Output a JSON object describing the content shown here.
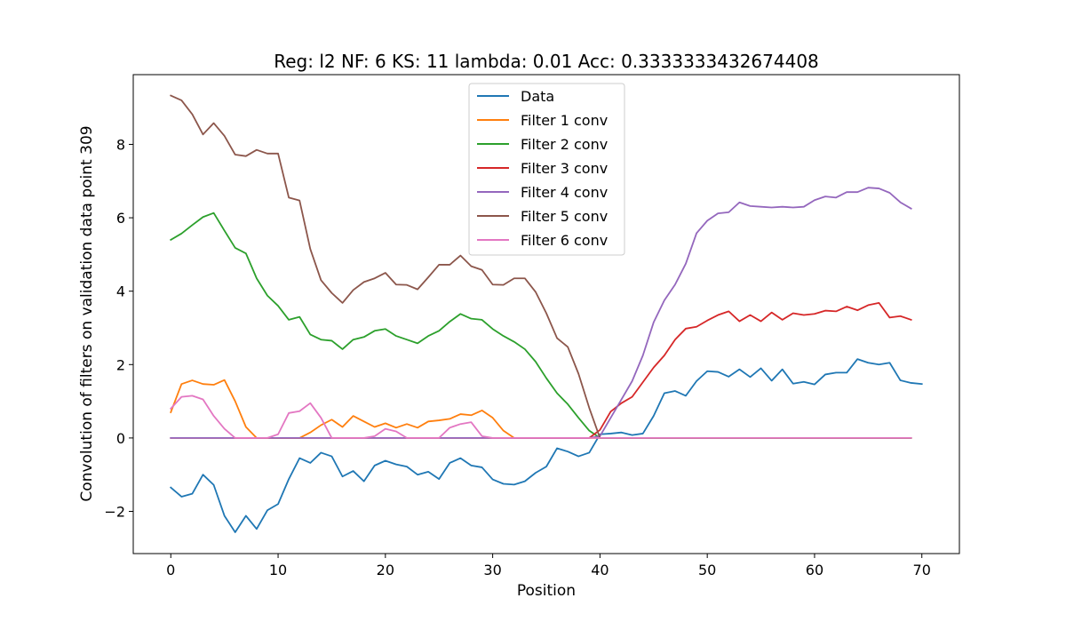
{
  "chart_data": {
    "type": "line",
    "title": "Reg: l2  NF: 6  KS: 11  lambda: 0.01 Acc: 0.3333333432674408",
    "xlabel": "Position",
    "ylabel": "Convolution of filters on validation data point 309",
    "xlim": [
      -3.5,
      73.5
    ],
    "ylim": [
      -3.15,
      9.9
    ],
    "xticks": [
      0,
      10,
      20,
      30,
      40,
      50,
      60,
      70
    ],
    "yticks": [
      -2,
      0,
      2,
      4,
      6,
      8
    ],
    "grid": false,
    "legend_position": "top-center",
    "series": [
      {
        "name": "Data",
        "color": "#1f77b4",
        "x_start": 0,
        "values": [
          -1.35,
          -1.6,
          -1.52,
          -1.0,
          -1.28,
          -2.12,
          -2.57,
          -2.12,
          -2.48,
          -1.97,
          -1.8,
          -1.12,
          -0.55,
          -0.68,
          -0.4,
          -0.5,
          -1.05,
          -0.9,
          -1.18,
          -0.75,
          -0.62,
          -0.72,
          -0.78,
          -1.0,
          -0.92,
          -1.12,
          -0.68,
          -0.55,
          -0.75,
          -0.8,
          -1.13,
          -1.25,
          -1.27,
          -1.18,
          -0.95,
          -0.78,
          -0.28,
          -0.37,
          -0.5,
          -0.4,
          0.1,
          0.12,
          0.15,
          0.08,
          0.12,
          0.6,
          1.22,
          1.28,
          1.15,
          1.55,
          1.82,
          1.8,
          1.67,
          1.87,
          1.66,
          1.9,
          1.56,
          1.87,
          1.48,
          1.53,
          1.46,
          1.73,
          1.78,
          1.78,
          2.15,
          2.05,
          2.0,
          2.05,
          1.57,
          1.5,
          1.47
        ]
      },
      {
        "name": "Filter 1 conv",
        "color": "#ff7f0e",
        "x_start": 0,
        "values": [
          0.7,
          1.47,
          1.57,
          1.47,
          1.45,
          1.58,
          1.0,
          0.3,
          0.0,
          0.0,
          0.0,
          0.0,
          0.0,
          0.15,
          0.35,
          0.5,
          0.3,
          0.6,
          0.45,
          0.3,
          0.4,
          0.28,
          0.38,
          0.28,
          0.45,
          0.48,
          0.52,
          0.65,
          0.62,
          0.75,
          0.55,
          0.2,
          0.0,
          0.0,
          0.0,
          0.0,
          0.0,
          0.0,
          0.0,
          0.0,
          0.0,
          0.0,
          0.0,
          0.0,
          0.0,
          0.0,
          0.0,
          0.0,
          0.0,
          0.0,
          0.0,
          0.0,
          0.0,
          0.0,
          0.0,
          0.0,
          0.0,
          0.0,
          0.0,
          0.0,
          0.0,
          0.0,
          0.0,
          0.0,
          0.0,
          0.0,
          0.0,
          0.0,
          0.0,
          0.0
        ]
      },
      {
        "name": "Filter 2 conv",
        "color": "#2ca02c",
        "x_start": 0,
        "values": [
          5.4,
          5.57,
          5.8,
          6.02,
          6.13,
          5.65,
          5.18,
          5.03,
          4.35,
          3.88,
          3.6,
          3.22,
          3.3,
          2.82,
          2.68,
          2.65,
          2.42,
          2.68,
          2.75,
          2.92,
          2.97,
          2.78,
          2.68,
          2.58,
          2.78,
          2.92,
          3.17,
          3.38,
          3.25,
          3.22,
          2.97,
          2.78,
          2.62,
          2.42,
          2.08,
          1.63,
          1.22,
          0.92,
          0.55,
          0.2,
          0.0,
          0.0,
          0.0,
          0.0,
          0.0,
          0.0,
          0.0,
          0.0,
          0.0,
          0.0,
          0.0,
          0.0,
          0.0,
          0.0,
          0.0,
          0.0,
          0.0,
          0.0,
          0.0,
          0.0,
          0.0,
          0.0,
          0.0,
          0.0,
          0.0,
          0.0,
          0.0,
          0.0,
          0.0,
          0.0
        ]
      },
      {
        "name": "Filter 3 conv",
        "color": "#d62728",
        "x_start": 0,
        "values": [
          0.0,
          0.0,
          0.0,
          0.0,
          0.0,
          0.0,
          0.0,
          0.0,
          0.0,
          0.0,
          0.0,
          0.0,
          0.0,
          0.0,
          0.0,
          0.0,
          0.0,
          0.0,
          0.0,
          0.0,
          0.0,
          0.0,
          0.0,
          0.0,
          0.0,
          0.0,
          0.0,
          0.0,
          0.0,
          0.0,
          0.0,
          0.0,
          0.0,
          0.0,
          0.0,
          0.0,
          0.0,
          0.0,
          0.0,
          0.0,
          0.22,
          0.72,
          0.95,
          1.12,
          1.52,
          1.92,
          2.25,
          2.68,
          2.98,
          3.03,
          3.2,
          3.35,
          3.45,
          3.18,
          3.35,
          3.18,
          3.42,
          3.22,
          3.4,
          3.35,
          3.38,
          3.47,
          3.45,
          3.58,
          3.48,
          3.62,
          3.68,
          3.28,
          3.32,
          3.22
        ]
      },
      {
        "name": "Filter 4 conv",
        "color": "#9467bd",
        "x_start": 0,
        "values": [
          0.0,
          0.0,
          0.0,
          0.0,
          0.0,
          0.0,
          0.0,
          0.0,
          0.0,
          0.0,
          0.0,
          0.0,
          0.0,
          0.0,
          0.0,
          0.0,
          0.0,
          0.0,
          0.0,
          0.0,
          0.0,
          0.0,
          0.0,
          0.0,
          0.0,
          0.0,
          0.0,
          0.0,
          0.0,
          0.0,
          0.0,
          0.0,
          0.0,
          0.0,
          0.0,
          0.0,
          0.0,
          0.0,
          0.0,
          0.0,
          0.05,
          0.55,
          1.05,
          1.55,
          2.25,
          3.15,
          3.75,
          4.18,
          4.75,
          5.58,
          5.92,
          6.12,
          6.15,
          6.42,
          6.32,
          6.3,
          6.28,
          6.3,
          6.28,
          6.3,
          6.48,
          6.58,
          6.55,
          6.7,
          6.7,
          6.82,
          6.8,
          6.68,
          6.42,
          6.25
        ]
      },
      {
        "name": "Filter 5 conv",
        "color": "#8c564b",
        "x_start": 0,
        "values": [
          9.33,
          9.2,
          8.82,
          8.27,
          8.58,
          8.23,
          7.72,
          7.68,
          7.85,
          7.75,
          7.75,
          6.55,
          6.47,
          5.15,
          4.3,
          3.95,
          3.68,
          4.03,
          4.25,
          4.35,
          4.5,
          4.18,
          4.17,
          4.05,
          4.38,
          4.72,
          4.72,
          4.97,
          4.68,
          4.58,
          4.18,
          4.17,
          4.35,
          4.35,
          3.98,
          3.4,
          2.72,
          2.48,
          1.75,
          0.82,
          0.0,
          0.0,
          0.0,
          0.0,
          0.0,
          0.0,
          0.0,
          0.0,
          0.0,
          0.0,
          0.0,
          0.0,
          0.0,
          0.0,
          0.0,
          0.0,
          0.0,
          0.0,
          0.0,
          0.0,
          0.0,
          0.0,
          0.0,
          0.0,
          0.0,
          0.0,
          0.0,
          0.0,
          0.0,
          0.0
        ]
      },
      {
        "name": "Filter 6 conv",
        "color": "#e377c2",
        "x_start": 0,
        "values": [
          0.8,
          1.12,
          1.15,
          1.05,
          0.6,
          0.25,
          0.0,
          0.0,
          0.0,
          0.0,
          0.1,
          0.68,
          0.73,
          0.95,
          0.55,
          0.0,
          0.0,
          0.0,
          0.0,
          0.05,
          0.25,
          0.18,
          0.0,
          0.0,
          0.0,
          0.0,
          0.28,
          0.38,
          0.43,
          0.05,
          0.0,
          0.0,
          0.0,
          0.0,
          0.0,
          0.0,
          0.0,
          0.0,
          0.0,
          0.0,
          0.0,
          0.0,
          0.0,
          0.0,
          0.0,
          0.0,
          0.0,
          0.0,
          0.0,
          0.0,
          0.0,
          0.0,
          0.0,
          0.0,
          0.0,
          0.0,
          0.0,
          0.0,
          0.0,
          0.0,
          0.0,
          0.0,
          0.0,
          0.0,
          0.0,
          0.0,
          0.0,
          0.0,
          0.0,
          0.0
        ]
      }
    ]
  }
}
